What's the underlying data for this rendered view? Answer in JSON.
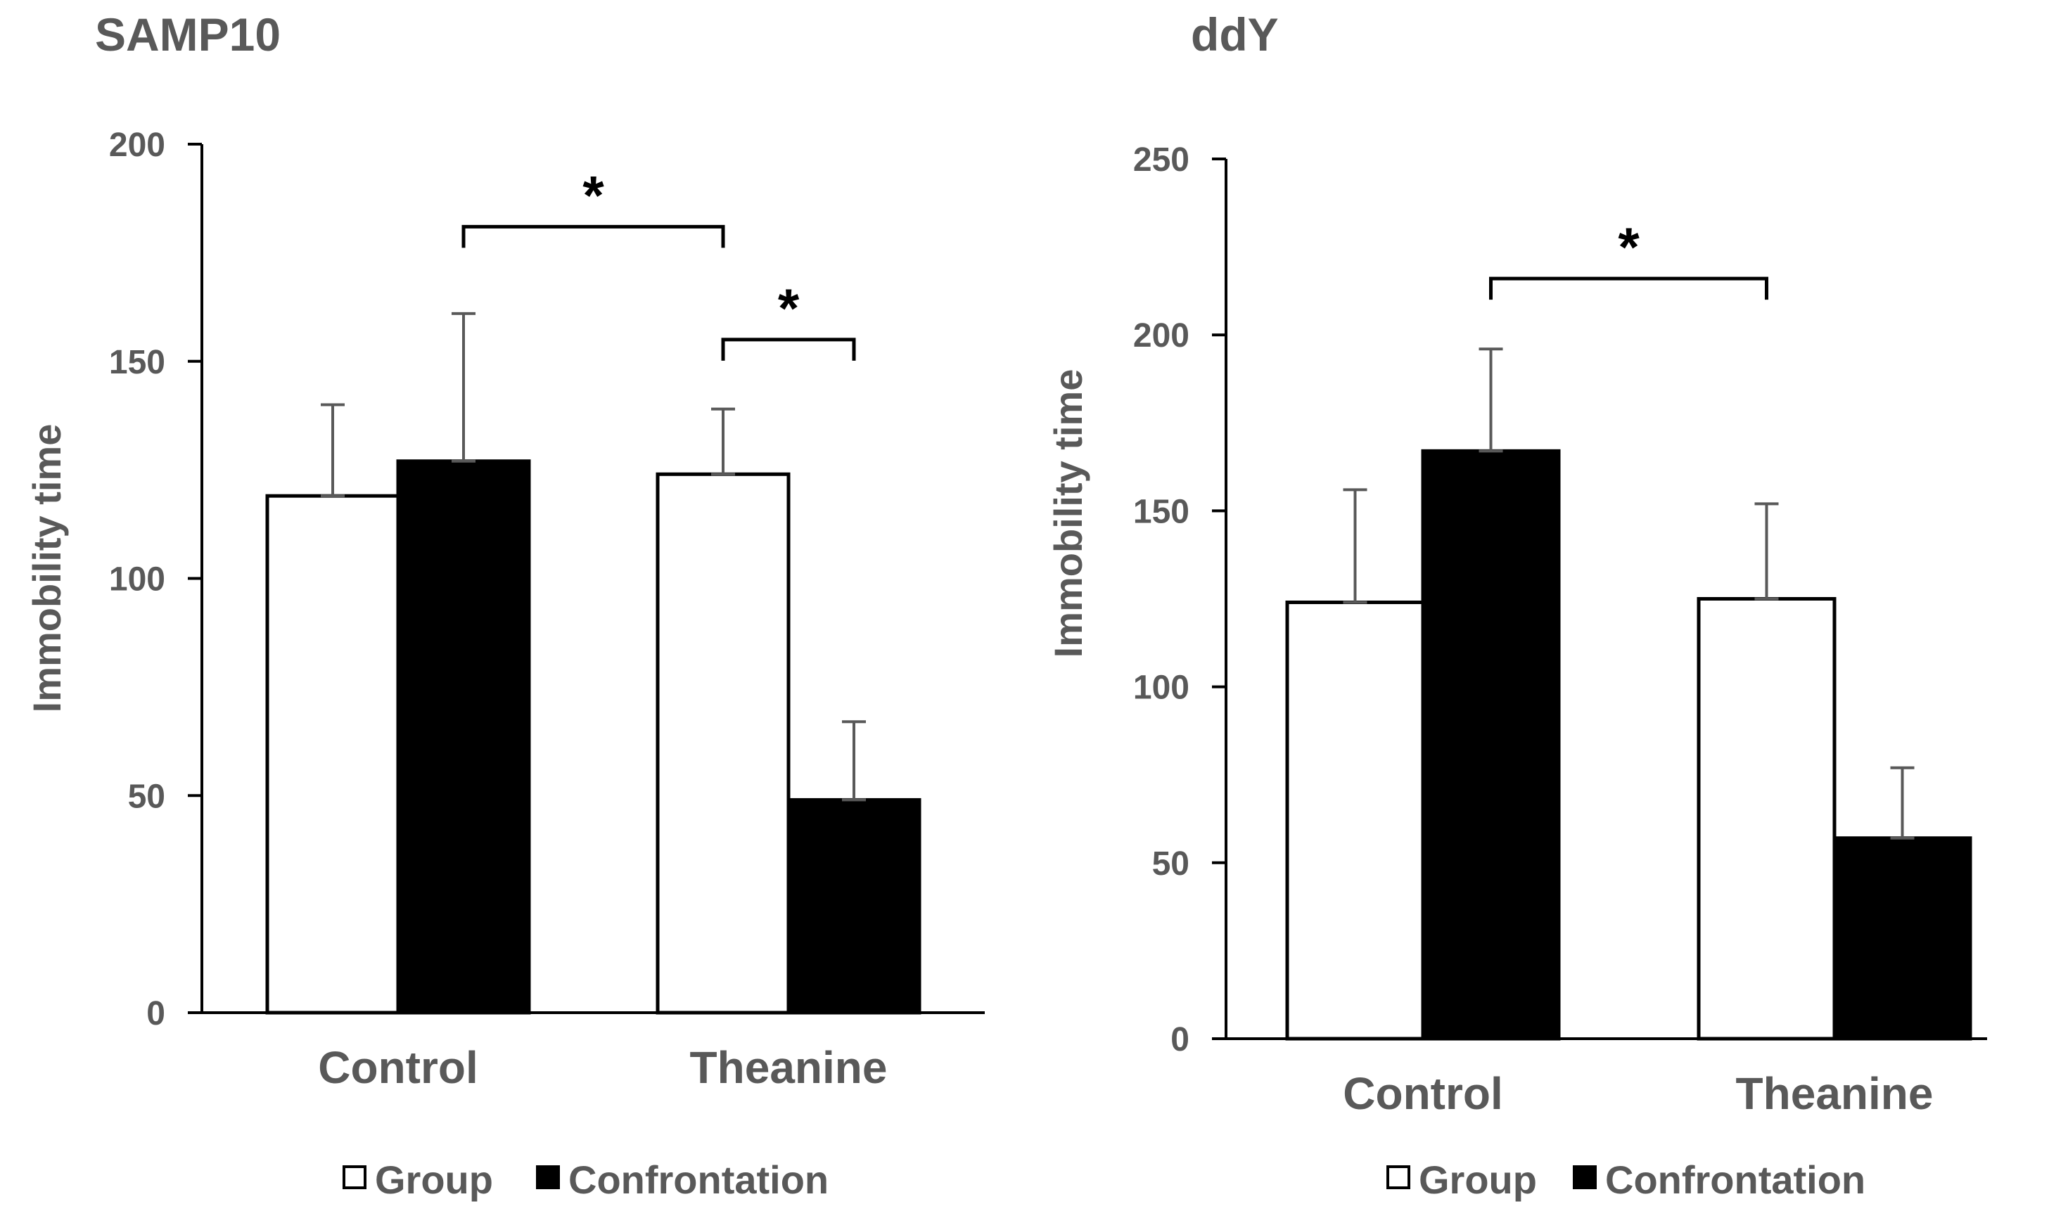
{
  "colors": {
    "group": "#ffffff",
    "confrontation": "#000000",
    "text": "#595959",
    "error_bar": "#595959"
  },
  "chart_data": [
    {
      "type": "bar",
      "title": "SAMP10",
      "xlabel": "",
      "ylabel": "Immobility time",
      "categories": [
        "Control",
        "Theanine"
      ],
      "series": [
        {
          "name": "Group",
          "values": [
            119,
            124
          ],
          "errors": [
            21,
            15
          ]
        },
        {
          "name": "Confrontation",
          "values": [
            127,
            49
          ],
          "errors": [
            34,
            18
          ]
        }
      ],
      "ylim": [
        0,
        200
      ],
      "yticks": [
        "0",
        "50",
        "100",
        "150",
        "200"
      ],
      "grid": false,
      "legend": "bottom",
      "significance": [
        {
          "label": "*",
          "from": [
            0,
            1
          ],
          "to": [
            1,
            0
          ],
          "y": 181
        },
        {
          "label": "*",
          "from": [
            1,
            0
          ],
          "to": [
            1,
            1
          ],
          "y": 155
        }
      ]
    },
    {
      "type": "bar",
      "title": "ddY",
      "xlabel": "",
      "ylabel": "Immobility time",
      "categories": [
        "Control",
        "Theanine"
      ],
      "series": [
        {
          "name": "Group",
          "values": [
            124,
            125
          ],
          "errors": [
            32,
            27
          ]
        },
        {
          "name": "Confrontation",
          "values": [
            167,
            57
          ],
          "errors": [
            29,
            20
          ]
        }
      ],
      "ylim": [
        0,
        250
      ],
      "yticks": [
        "0",
        "50",
        "100",
        "150",
        "200",
        "250"
      ],
      "grid": false,
      "legend": "bottom",
      "significance": [
        {
          "label": "*",
          "from": [
            0,
            1
          ],
          "to": [
            1,
            0
          ],
          "y": 216
        }
      ]
    }
  ]
}
